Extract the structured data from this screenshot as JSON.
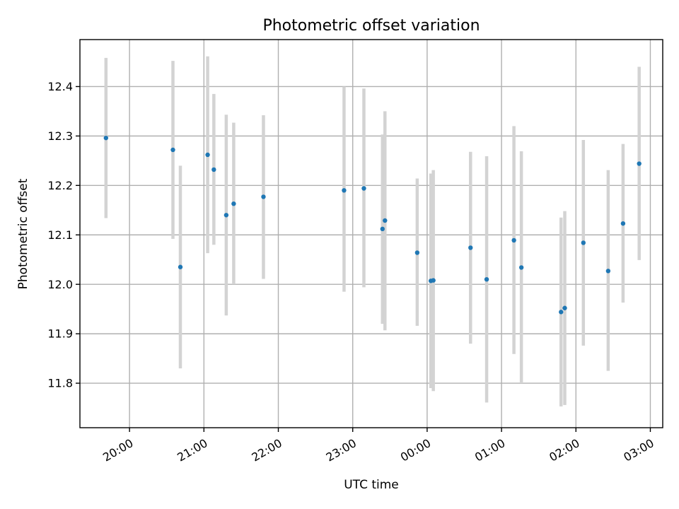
{
  "chart_data": {
    "type": "scatter",
    "title": "Photometric offset variation",
    "xlabel": "UTC time",
    "ylabel": "Photometric offset",
    "x_is_time": true,
    "xlim": [
      "19:20",
      "03:10"
    ],
    "ylim": [
      11.71,
      12.495
    ],
    "grid": true,
    "x_ticks": [
      "20:00",
      "21:00",
      "22:00",
      "23:00",
      "00:00",
      "01:00",
      "02:00",
      "03:00"
    ],
    "y_ticks": [
      "11.8",
      "11.9",
      "12.0",
      "12.1",
      "12.2",
      "12.3",
      "12.4"
    ],
    "series": [
      {
        "color": "#1f77b4",
        "errorbar_color": "#d3d3d3",
        "points": [
          {
            "time": "19:41",
            "y": 12.296,
            "err_low": 12.134,
            "err_high": 12.458
          },
          {
            "time": "20:35",
            "y": 12.272,
            "err_low": 12.092,
            "err_high": 12.452
          },
          {
            "time": "20:41",
            "y": 12.035,
            "err_low": 11.83,
            "err_high": 12.24
          },
          {
            "time": "21:03",
            "y": 12.262,
            "err_low": 12.063,
            "err_high": 12.461
          },
          {
            "time": "21:08",
            "y": 12.232,
            "err_low": 12.08,
            "err_high": 12.385
          },
          {
            "time": "21:18",
            "y": 12.14,
            "err_low": 11.937,
            "err_high": 12.343
          },
          {
            "time": "21:24",
            "y": 12.163,
            "err_low": 12.0,
            "err_high": 12.327
          },
          {
            "time": "21:48",
            "y": 12.177,
            "err_low": 12.011,
            "err_high": 12.342
          },
          {
            "time": "22:53",
            "y": 12.19,
            "err_low": 11.985,
            "err_high": 12.4
          },
          {
            "time": "23:09",
            "y": 12.194,
            "err_low": 11.994,
            "err_high": 12.396
          },
          {
            "time": "23:24",
            "y": 12.112,
            "err_low": 11.92,
            "err_high": 12.303
          },
          {
            "time": "23:26",
            "y": 12.129,
            "err_low": 11.907,
            "err_high": 12.35
          },
          {
            "time": "23:52",
            "y": 12.064,
            "err_low": 11.916,
            "err_high": 12.214
          },
          {
            "time": "00:03",
            "y": 12.007,
            "err_low": 11.79,
            "err_high": 12.224
          },
          {
            "time": "00:05",
            "y": 12.008,
            "err_low": 11.784,
            "err_high": 12.231
          },
          {
            "time": "00:35",
            "y": 12.074,
            "err_low": 11.88,
            "err_high": 12.268
          },
          {
            "time": "00:48",
            "y": 12.01,
            "err_low": 11.761,
            "err_high": 12.259
          },
          {
            "time": "01:10",
            "y": 12.089,
            "err_low": 11.859,
            "err_high": 12.32
          },
          {
            "time": "01:16",
            "y": 12.034,
            "err_low": 11.8,
            "err_high": 12.269
          },
          {
            "time": "01:48",
            "y": 11.944,
            "err_low": 11.753,
            "err_high": 12.135
          },
          {
            "time": "01:51",
            "y": 11.952,
            "err_low": 11.756,
            "err_high": 12.148
          },
          {
            "time": "02:06",
            "y": 12.084,
            "err_low": 11.876,
            "err_high": 12.292
          },
          {
            "time": "02:26",
            "y": 12.027,
            "err_low": 11.825,
            "err_high": 12.231
          },
          {
            "time": "02:38",
            "y": 12.123,
            "err_low": 11.963,
            "err_high": 12.284
          },
          {
            "time": "02:51",
            "y": 12.244,
            "err_low": 12.049,
            "err_high": 12.44
          }
        ]
      }
    ]
  }
}
